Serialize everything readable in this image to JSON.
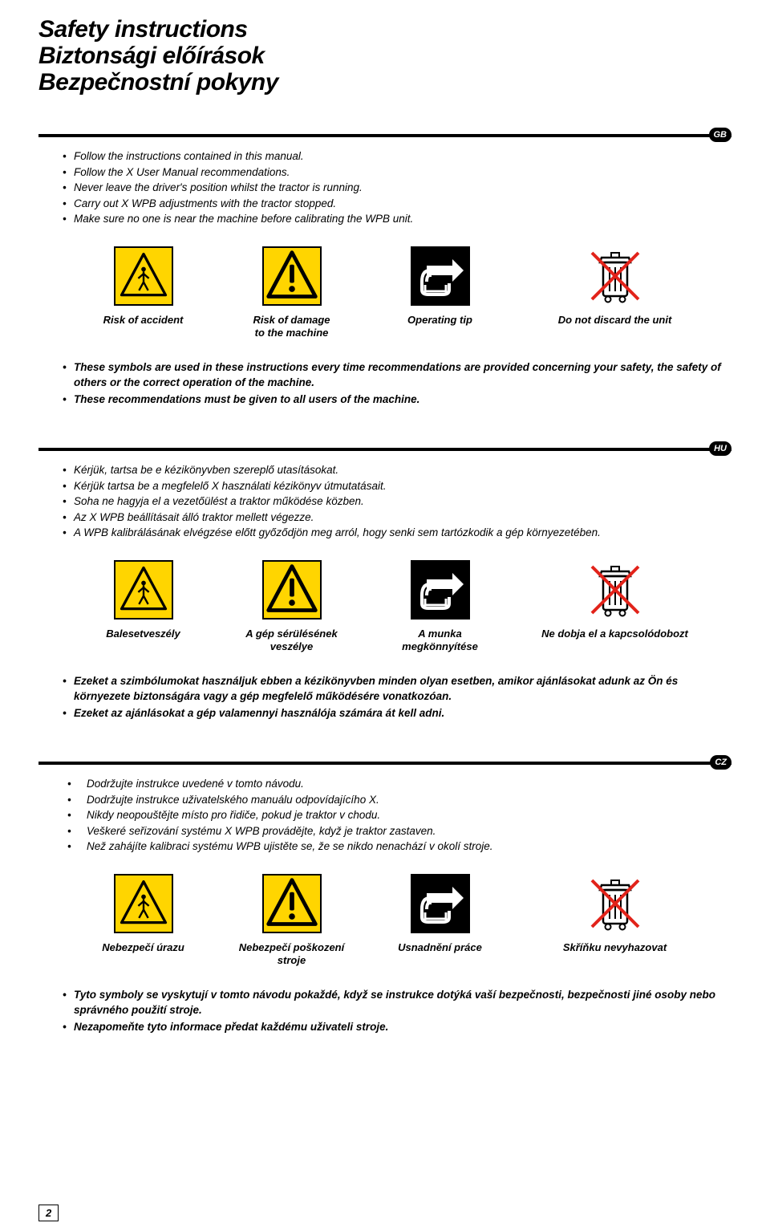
{
  "colors": {
    "black": "#000000",
    "white": "#ffffff",
    "yellow": "#ffd500",
    "red": "#e2231a"
  },
  "title": {
    "line1": "Safety instructions",
    "line2": "Biztonsági előírások",
    "line3": "Bezpečnostní pokyny"
  },
  "page_number": "2",
  "sections": [
    {
      "badge": "GB",
      "instructions": [
        "Follow the instructions contained in this manual.",
        "Follow the X User Manual recommendations.",
        "Never leave the driver's position whilst the tractor is running.",
        "Carry out X WPB adjustments with the tractor stopped.",
        "Make sure no one is near the machine before calibrating the WPB unit."
      ],
      "icons": [
        {
          "type": "accident",
          "label": "Risk of accident"
        },
        {
          "type": "damage",
          "label": "Risk of damage\nto the machine"
        },
        {
          "type": "tip",
          "label": "Operating tip"
        },
        {
          "type": "discard",
          "label": "Do not discard the unit"
        }
      ],
      "notes": [
        "These symbols are used in these instructions every time recommendations are provided concerning your safety, the safety of others or the correct operation of the machine.",
        "These recommendations must be given to all users of the machine."
      ]
    },
    {
      "badge": "HU",
      "instructions": [
        "Kérjük, tartsa be e kézikönyvben szereplő utasításokat.",
        "Kérjük tartsa be a megfelelő X használati kézikönyv útmutatásait.",
        "Soha ne hagyja el a vezetőülést a traktor működése közben.",
        "Az X WPB beállításait álló traktor mellett végezze.",
        "A WPB kalibrálásának elvégzése előtt győződjön meg arról, hogy senki sem tartózkodik a gép környezetében."
      ],
      "icons": [
        {
          "type": "accident",
          "label": "Balesetveszély"
        },
        {
          "type": "damage",
          "label": "A gép sérülésének\nveszélye"
        },
        {
          "type": "tip",
          "label": "A munka\nmegkönnyítése"
        },
        {
          "type": "discard",
          "label": "Ne dobja el a kapcsolódobozt"
        }
      ],
      "notes": [
        "Ezeket a szimbólumokat használjuk ebben a kézikönyvben minden olyan esetben, amikor ajánlásokat adunk az Ön és környezete biztonságára vagy a gép megfelelő működésére vonatkozóan.",
        "Ezeket az ajánlásokat a gép valamennyi használója számára át kell adni."
      ]
    },
    {
      "badge": "CZ",
      "instructions": [
        "Dodržujte instrukce uvedené v tomto návodu.",
        "Dodržujte instrukce uživatelského manuálu odpovídajícího X.",
        "Nikdy neopouštějte místo pro řidiče, pokud je traktor v chodu.",
        "Veškeré seřizování systému X WPB provádějte, když je traktor zastaven.",
        "Než zahájíte kalibraci systému WPB ujistěte se, že se nikdo nenachází v okolí stroje."
      ],
      "icons": [
        {
          "type": "accident",
          "label": "Nebezpečí úrazu"
        },
        {
          "type": "damage",
          "label": "Nebezpečí poškození\nstroje"
        },
        {
          "type": "tip",
          "label": "Usnadnění práce"
        },
        {
          "type": "discard",
          "label": "Skříňku nevyhazovat"
        }
      ],
      "notes": [
        "Tyto symboly se vyskytují v tomto návodu pokaždé, když se instrukce dotýká vaší bezpečnosti, bezpečnosti jiné osoby nebo správného použití stroje.",
        "Nezapomeňte tyto informace předat každému uživateli stroje."
      ]
    }
  ]
}
